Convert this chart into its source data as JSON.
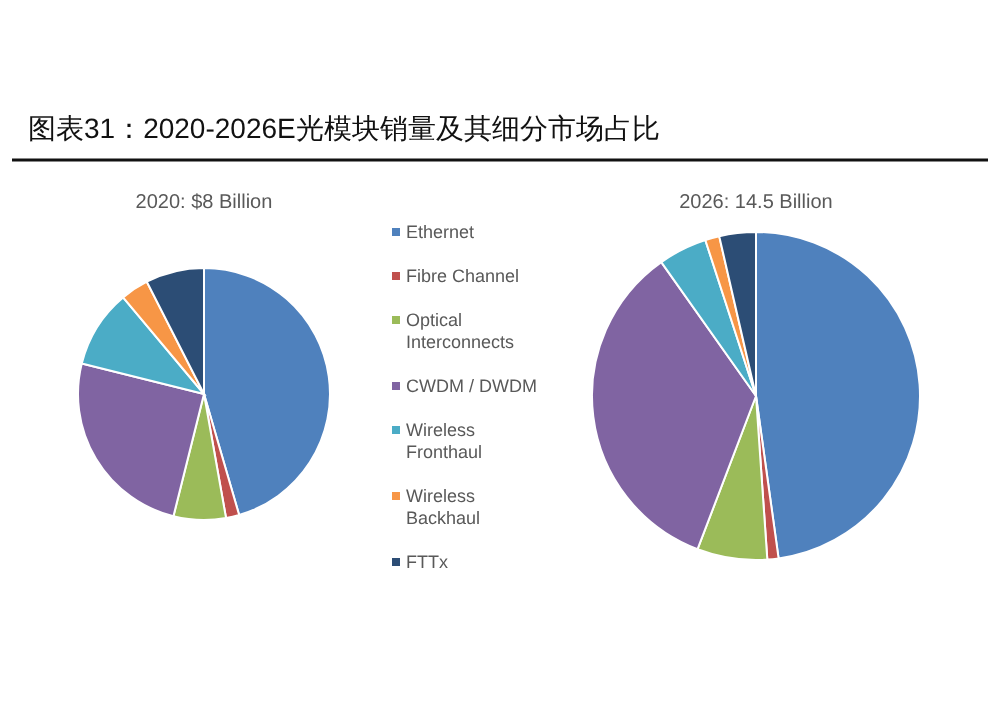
{
  "chart_data": [
    {
      "type": "pie",
      "title": "图表31：2020-2026E光模块销量及其细分市场占比",
      "subtitle": "2020: $8 Billion",
      "legend": "right",
      "categories": [
        "Ethernet",
        "Fibre Channel",
        "Optical Interconnects",
        "CWDM / DWDM",
        "Wireless Fronthaul",
        "Wireless Backhaul",
        "FTTx"
      ],
      "values": [
        45.5,
        1.7,
        6.7,
        25,
        10,
        3.6,
        7.5
      ],
      "colors": [
        "#4f81bd",
        "#c0504d",
        "#9bbb59",
        "#8064a2",
        "#4bacc6",
        "#f79646",
        "#2c4d75"
      ]
    },
    {
      "type": "pie",
      "title": "2026: 14.5 Billion",
      "categories": [
        null,
        null,
        null,
        null,
        null,
        null,
        null
      ],
      "values": [
        47.8,
        1.1,
        6.9,
        34.4,
        4.8,
        1.4,
        3.6
      ],
      "colors": [
        "#4f81bd",
        "#c0504d",
        "#9bbb59",
        "#8064a2",
        "#4bacc6",
        "#f79646",
        "#2c4d75"
      ]
    }
  ]
}
